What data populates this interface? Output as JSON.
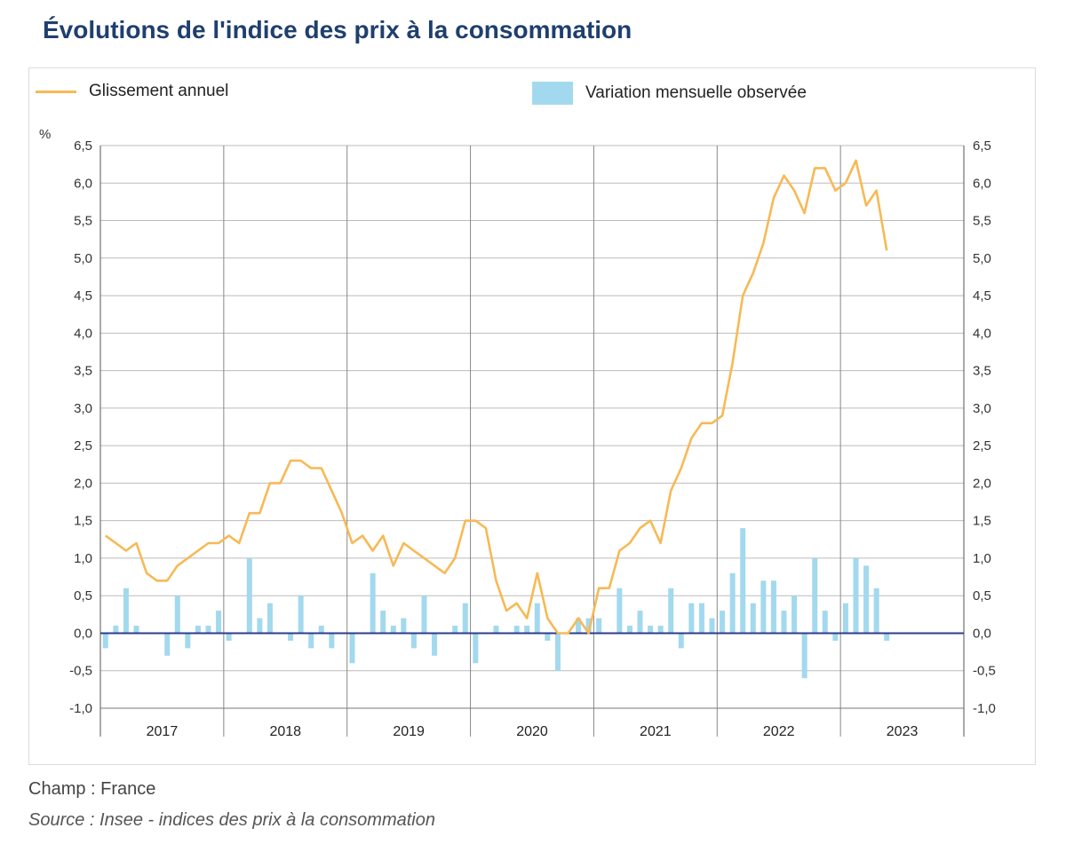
{
  "title": "Évolutions de l'indice des prix à la consommation",
  "legend": {
    "line_label": "Glissement annuel",
    "bar_label": "Variation mensuelle observée"
  },
  "unit": "%",
  "footer": {
    "champ": "Champ : France",
    "source": "Source : Insee - indices des prix à la consommation"
  },
  "colors": {
    "line": "#f7b955",
    "bar": "#a3d9ee",
    "zero_line": "#2c3c8c",
    "grid": "#bbbbbb",
    "title": "#1f3f6e"
  },
  "chart_data": {
    "type": "bar",
    "start": "2017-01",
    "years": [
      "2017",
      "2018",
      "2019",
      "2020",
      "2021",
      "2022",
      "2023"
    ],
    "ylim": [
      -1.0,
      6.5
    ],
    "yticks": [
      "-1,0",
      "-0,5",
      "0,0",
      "0,5",
      "1,0",
      "1,5",
      "2,0",
      "2,5",
      "3,0",
      "3,5",
      "4,0",
      "4,5",
      "5,0",
      "5,5",
      "6,0",
      "6,5"
    ],
    "grid": true,
    "series": [
      {
        "name": "Glissement annuel",
        "type": "line",
        "values": [
          1.3,
          1.2,
          1.1,
          1.2,
          0.8,
          0.7,
          0.7,
          0.9,
          1.0,
          1.1,
          1.2,
          1.2,
          1.3,
          1.2,
          1.6,
          1.6,
          2.0,
          2.0,
          2.3,
          2.3,
          2.2,
          2.2,
          1.9,
          1.6,
          1.2,
          1.3,
          1.1,
          1.3,
          0.9,
          1.2,
          1.1,
          1.0,
          0.9,
          0.8,
          1.0,
          1.5,
          1.5,
          1.4,
          0.7,
          0.3,
          0.4,
          0.2,
          0.8,
          0.2,
          0.0,
          0.0,
          0.2,
          0.0,
          0.6,
          0.6,
          1.1,
          1.2,
          1.4,
          1.5,
          1.2,
          1.9,
          2.2,
          2.6,
          2.8,
          2.8,
          2.9,
          3.6,
          4.5,
          4.8,
          5.2,
          5.8,
          6.1,
          5.9,
          5.6,
          6.2,
          6.2,
          5.9,
          6.0,
          6.3,
          5.7,
          5.9,
          5.1
        ]
      },
      {
        "name": "Variation mensuelle observée",
        "type": "bar",
        "values": [
          -0.2,
          0.1,
          0.6,
          0.1,
          0.0,
          0.0,
          -0.3,
          0.5,
          -0.2,
          0.1,
          0.1,
          0.3,
          -0.1,
          0.0,
          1.0,
          0.2,
          0.4,
          0.0,
          -0.1,
          0.5,
          -0.2,
          0.1,
          -0.2,
          0.0,
          -0.4,
          0.0,
          0.8,
          0.3,
          0.1,
          0.2,
          -0.2,
          0.5,
          -0.3,
          0.0,
          0.1,
          0.4,
          -0.4,
          0.0,
          0.1,
          0.0,
          0.1,
          0.1,
          0.4,
          -0.1,
          -0.5,
          0.0,
          0.2,
          0.2,
          0.2,
          0.0,
          0.6,
          0.1,
          0.3,
          0.1,
          0.1,
          0.6,
          -0.2,
          0.4,
          0.4,
          0.2,
          0.3,
          0.8,
          1.4,
          0.4,
          0.7,
          0.7,
          0.3,
          0.5,
          -0.6,
          1.0,
          0.3,
          -0.1,
          0.4,
          1.0,
          0.9,
          0.6,
          -0.1
        ]
      }
    ]
  }
}
